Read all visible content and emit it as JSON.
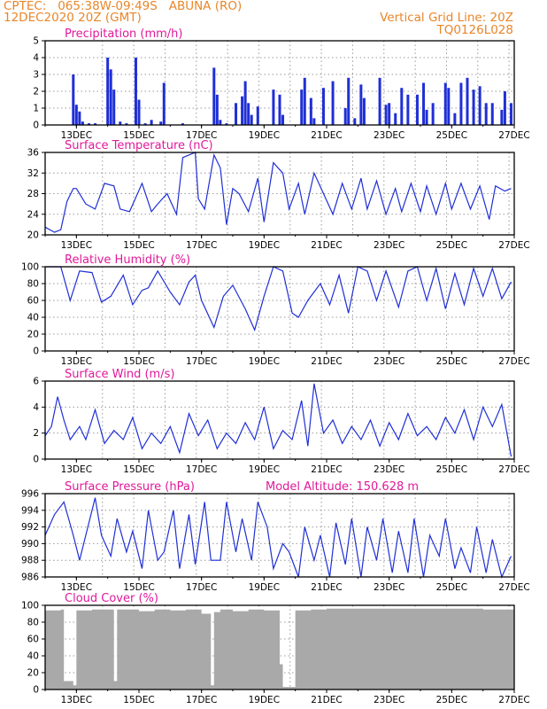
{
  "header": {
    "line1": "CPTEC:   065:38W-09:49S   ABUNA (RO)",
    "line2": "12DEC2020 20Z (GMT)",
    "right1": "Vertical Grid Line: 20Z",
    "right2": "TQ0126L028"
  },
  "colors": {
    "header": "#e8862a",
    "title": "#e0199a",
    "series": "#1f2fd6",
    "cloud": "#a9a9a9",
    "grid": "#9a9a9a"
  },
  "x_ticks": [
    "13DEC",
    "15DEC",
    "17DEC",
    "19DEC",
    "21DEC",
    "23DEC",
    "25DEC",
    "27DEC"
  ],
  "chart_data": [
    {
      "type": "bar",
      "title": "Precipitation  (mm/h)",
      "x": [
        "12.9",
        "13.0",
        "13.1",
        "13.2",
        "13.4",
        "13.6",
        "14.0",
        "14.1",
        "14.2",
        "14.4",
        "14.6",
        "14.9",
        "15.0",
        "15.2",
        "15.4",
        "15.7",
        "15.8",
        "16.4",
        "17.4",
        "17.5",
        "17.6",
        "17.8",
        "18.1",
        "18.3",
        "18.4",
        "18.5",
        "18.6",
        "18.8",
        "19.3",
        "19.5",
        "19.6",
        "20.2",
        "20.3",
        "20.5",
        "20.6",
        "20.9",
        "21.2",
        "21.6",
        "21.7",
        "21.9",
        "22.1",
        "22.2",
        "22.7",
        "22.9",
        "23.0",
        "23.2",
        "23.4",
        "23.6",
        "23.9",
        "24.1",
        "24.2",
        "24.4",
        "24.8",
        "24.9",
        "25.1",
        "25.3",
        "25.5",
        "25.7",
        "25.9",
        "26.1",
        "26.3",
        "26.6",
        "26.7",
        "26.9"
      ],
      "values": [
        3.0,
        1.2,
        0.8,
        0.2,
        0.1,
        0.1,
        4.0,
        3.3,
        2.1,
        0.2,
        0.1,
        4.0,
        1.5,
        0.1,
        0.3,
        0.2,
        2.5,
        0.1,
        3.4,
        1.8,
        0.3,
        0.1,
        1.3,
        1.7,
        2.6,
        1.3,
        0.6,
        1.1,
        2.1,
        1.8,
        0.6,
        2.1,
        2.8,
        1.6,
        0.4,
        2.2,
        2.6,
        1.0,
        2.8,
        0.4,
        2.4,
        1.6,
        2.8,
        1.2,
        1.3,
        0.7,
        2.2,
        1.8,
        1.8,
        2.5,
        0.9,
        1.3,
        2.5,
        2.2,
        0.7,
        2.5,
        2.8,
        2.1,
        2.3,
        1.3,
        1.3,
        0.9,
        2.0,
        1.3
      ],
      "ylim": [
        0,
        5
      ]
    },
    {
      "type": "line",
      "title": "Surface Temperature (nC)",
      "x": [
        12.0,
        12.3,
        12.5,
        12.7,
        12.9,
        13.0,
        13.3,
        13.6,
        13.9,
        14.2,
        14.4,
        14.7,
        15.1,
        15.4,
        15.6,
        15.9,
        16.2,
        16.4,
        16.8,
        16.9,
        17.1,
        17.4,
        17.6,
        17.8,
        18.0,
        18.2,
        18.5,
        18.8,
        19.0,
        19.3,
        19.6,
        19.8,
        20.1,
        20.3,
        20.6,
        20.9,
        21.2,
        21.5,
        21.8,
        22.1,
        22.3,
        22.6,
        22.9,
        23.2,
        23.4,
        23.7,
        24.0,
        24.2,
        24.5,
        24.8,
        25.0,
        25.3,
        25.6,
        25.9,
        26.2,
        26.4,
        26.7,
        26.9
      ],
      "values": [
        21.5,
        20.5,
        21.0,
        26.5,
        29.0,
        29.0,
        26.0,
        25.0,
        30.0,
        29.5,
        25.0,
        24.5,
        30.0,
        24.5,
        26.0,
        28.0,
        24.0,
        35.0,
        36.0,
        27.0,
        25.0,
        35.5,
        33.0,
        22.0,
        29.0,
        28.0,
        24.5,
        31.0,
        22.5,
        34.0,
        32.0,
        25.0,
        30.0,
        24.0,
        32.0,
        28.0,
        24.0,
        30.0,
        25.0,
        31.0,
        25.0,
        30.5,
        24.0,
        29.0,
        24.5,
        30.0,
        24.5,
        29.5,
        24.0,
        30.0,
        25.0,
        30.0,
        25.0,
        29.5,
        23.0,
        29.5,
        28.5,
        29.0
      ],
      "ylim": [
        20,
        36
      ]
    },
    {
      "type": "line",
      "title": "Relative Humidity (%)",
      "x": [
        12.0,
        12.5,
        12.8,
        13.1,
        13.5,
        13.8,
        14.1,
        14.5,
        14.8,
        15.1,
        15.3,
        15.6,
        16.0,
        16.3,
        16.6,
        16.8,
        17.0,
        17.4,
        17.7,
        18.0,
        18.4,
        18.7,
        19.0,
        19.3,
        19.6,
        19.9,
        20.1,
        20.4,
        20.8,
        21.1,
        21.4,
        21.7,
        22.0,
        22.3,
        22.6,
        22.9,
        23.3,
        23.6,
        23.9,
        24.2,
        24.5,
        24.8,
        25.1,
        25.4,
        25.7,
        26.0,
        26.3,
        26.6,
        26.9
      ],
      "values": [
        100,
        100,
        60,
        95,
        93,
        58,
        65,
        90,
        55,
        72,
        75,
        95,
        70,
        55,
        82,
        90,
        60,
        28,
        65,
        78,
        50,
        25,
        65,
        100,
        95,
        45,
        40,
        60,
        80,
        55,
        90,
        45,
        100,
        95,
        60,
        95,
        52,
        95,
        100,
        60,
        98,
        50,
        92,
        55,
        98,
        65,
        98,
        62,
        82
      ],
      "ylim": [
        0,
        100
      ]
    },
    {
      "type": "line",
      "title": "Surface Wind (m/s)",
      "x": [
        12.0,
        12.2,
        12.4,
        12.6,
        12.8,
        13.1,
        13.3,
        13.6,
        13.9,
        14.2,
        14.5,
        14.8,
        15.1,
        15.4,
        15.7,
        16.0,
        16.3,
        16.6,
        16.9,
        17.2,
        17.5,
        17.8,
        18.1,
        18.4,
        18.7,
        19.0,
        19.3,
        19.6,
        19.9,
        20.2,
        20.4,
        20.6,
        20.9,
        21.2,
        21.5,
        21.8,
        22.1,
        22.4,
        22.7,
        23.0,
        23.3,
        23.6,
        23.9,
        24.2,
        24.5,
        24.8,
        25.1,
        25.4,
        25.7,
        26.0,
        26.3,
        26.6,
        26.9
      ],
      "values": [
        1.8,
        2.5,
        4.8,
        3.0,
        1.5,
        2.5,
        1.5,
        3.8,
        1.2,
        2.2,
        1.5,
        3.2,
        0.8,
        2.0,
        1.2,
        2.5,
        0.5,
        3.5,
        1.8,
        3.0,
        0.8,
        2.0,
        1.2,
        2.8,
        1.5,
        4.0,
        0.8,
        2.2,
        1.5,
        4.5,
        1.0,
        5.8,
        2.0,
        3.0,
        1.2,
        2.5,
        1.5,
        3.0,
        1.0,
        2.8,
        1.5,
        3.5,
        1.8,
        2.5,
        1.5,
        3.2,
        2.0,
        3.8,
        1.5,
        4.0,
        2.5,
        4.2,
        0.2
      ],
      "ylim": [
        0,
        6
      ]
    },
    {
      "type": "line",
      "title": "Surface Pressure (hPa)",
      "annotation": "Model Altitude: 150.628  m",
      "x": [
        12.0,
        12.3,
        12.6,
        12.9,
        13.1,
        13.3,
        13.6,
        13.8,
        14.1,
        14.3,
        14.6,
        14.8,
        15.1,
        15.3,
        15.6,
        15.8,
        16.1,
        16.3,
        16.6,
        16.8,
        17.1,
        17.3,
        17.6,
        17.8,
        18.1,
        18.3,
        18.6,
        18.8,
        19.1,
        19.3,
        19.6,
        19.8,
        20.1,
        20.3,
        20.6,
        20.8,
        21.1,
        21.3,
        21.6,
        21.8,
        22.1,
        22.3,
        22.6,
        22.8,
        23.1,
        23.3,
        23.6,
        23.8,
        24.1,
        24.3,
        24.6,
        24.8,
        25.1,
        25.3,
        25.6,
        25.8,
        26.1,
        26.3,
        26.6,
        26.9
      ],
      "values": [
        991,
        993.5,
        995,
        991,
        988,
        991,
        995.5,
        991,
        988.5,
        993,
        989,
        991.5,
        987,
        994,
        988,
        989,
        994,
        987,
        993.5,
        987.5,
        995,
        988,
        988,
        995,
        989,
        993,
        988,
        995,
        992,
        987,
        990,
        989,
        986,
        992,
        988,
        991,
        986,
        992.5,
        987.5,
        993,
        986,
        992,
        988,
        993,
        986.5,
        991.5,
        986.5,
        993,
        986,
        991,
        988.5,
        993,
        987,
        989.5,
        986.5,
        992,
        986.5,
        990.5,
        986,
        988.5
      ],
      "ylim": [
        986,
        996
      ]
    },
    {
      "type": "bar",
      "title": "Cloud Cover (%)",
      "x": [
        12.0,
        12.5,
        12.6,
        12.9,
        13.0,
        13.5,
        14.2,
        14.3,
        15.0,
        15.5,
        16.0,
        16.5,
        17.0,
        17.3,
        17.4,
        17.6,
        18.0,
        18.5,
        19.0,
        19.5,
        19.6,
        20.0,
        20.5,
        21.0,
        22.0,
        23.0,
        24.0,
        25.0,
        26.0,
        27.0
      ],
      "values": [
        94,
        95,
        10,
        5,
        94,
        95,
        10,
        95,
        93,
        95,
        94,
        95,
        90,
        5,
        92,
        95,
        93,
        95,
        94,
        30,
        3,
        94,
        95,
        96,
        96,
        96,
        96,
        96,
        95,
        95
      ],
      "ylim": [
        0,
        100
      ]
    }
  ]
}
